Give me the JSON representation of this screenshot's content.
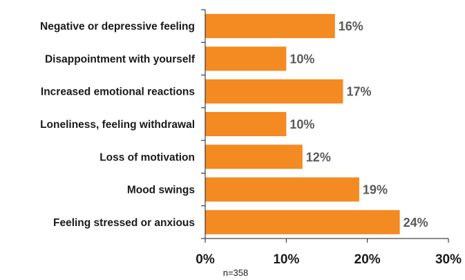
{
  "chart_data": {
    "type": "bar",
    "orientation": "horizontal",
    "categories": [
      "Negative or depressive feeling",
      "Disappointment with yourself",
      "Increased emotional reactions",
      "Loneliness, feeling withdrawal",
      "Loss of motivation",
      "Mood swings",
      "Feeling stressed or anxious"
    ],
    "values": [
      16,
      10,
      17,
      10,
      12,
      19,
      24
    ],
    "value_labels": [
      "16%",
      "10%",
      "17%",
      "10%",
      "12%",
      "19%",
      "24%"
    ],
    "xlim": [
      0,
      30
    ],
    "x_ticks": [
      0,
      10,
      20,
      30
    ],
    "x_tick_labels": [
      "0%",
      "10%",
      "20%",
      "30%"
    ],
    "bar_color": "#f48a22",
    "grid": false,
    "legend": false,
    "note": "n=358"
  }
}
